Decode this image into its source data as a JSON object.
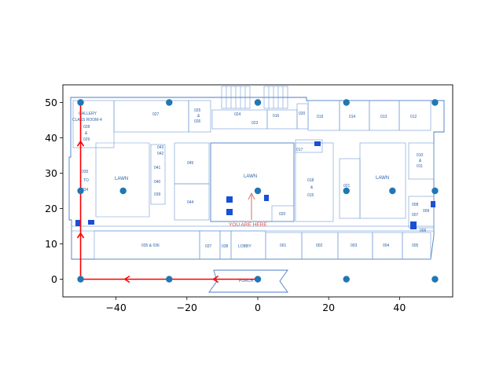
{
  "chart_data": {
    "type": "scatter",
    "x_ticks": [
      -40,
      -20,
      0,
      20,
      40
    ],
    "y_ticks": [
      0,
      10,
      20,
      30,
      40,
      50
    ],
    "xlim": [
      -55,
      55
    ],
    "ylim": [
      -5,
      55
    ],
    "grid": false,
    "points": [
      {
        "x": -50,
        "y": 50
      },
      {
        "x": -25,
        "y": 50
      },
      {
        "x": 0,
        "y": 50
      },
      {
        "x": 25,
        "y": 50
      },
      {
        "x": 50,
        "y": 50
      },
      {
        "x": -50,
        "y": 25
      },
      {
        "x": -38,
        "y": 25
      },
      {
        "x": 0,
        "y": 25
      },
      {
        "x": 25,
        "y": 25
      },
      {
        "x": 38,
        "y": 25
      },
      {
        "x": 50,
        "y": 25
      },
      {
        "x": -50,
        "y": 0
      },
      {
        "x": -25,
        "y": 0
      },
      {
        "x": 0,
        "y": 0
      },
      {
        "x": 25,
        "y": 0
      },
      {
        "x": 50,
        "y": 0
      }
    ],
    "point_color": "#1f77b4",
    "path_color": "#ff0000",
    "path": [
      {
        "x": 0,
        "y": 0
      },
      {
        "x": -12.5,
        "y": 0
      },
      {
        "x": -25,
        "y": 0
      },
      {
        "x": -37.5,
        "y": 0
      },
      {
        "x": -50,
        "y": 0
      },
      {
        "x": -50,
        "y": 13
      },
      {
        "x": -50,
        "y": 26
      },
      {
        "x": -50,
        "y": 39
      },
      {
        "x": -50,
        "y": 50
      }
    ],
    "arrowheads": [
      {
        "x": -12.5,
        "y": 0,
        "dir": "left"
      },
      {
        "x": -37.5,
        "y": 0,
        "dir": "left"
      },
      {
        "x": -50,
        "y": 13,
        "dir": "up"
      },
      {
        "x": -50,
        "y": 39,
        "dir": "up"
      }
    ]
  },
  "floorplan": {
    "you_are_here": "YOU ARE HERE",
    "labels": {
      "gallery": "GALLERY",
      "class_room": "CLASS ROOM-4",
      "r028": "028",
      "amp": "&",
      "r029": "029",
      "r030": "030",
      "to": "TO",
      "r034": "034",
      "lawn_left": "LAWN",
      "r043": "043",
      "r042": "042",
      "r041": "041",
      "r040": "040",
      "r039": "039",
      "r045": "045",
      "r044": "044",
      "r027": "027",
      "r025": "025",
      "r026": "026",
      "r024": "024",
      "r023": "023",
      "r016": "016",
      "r020": "020",
      "r019": "019",
      "r017": "017",
      "lawn_center": "LAWN",
      "r018": "018",
      "r015": "015",
      "r021": "021",
      "r014": "014",
      "r013": "013",
      "r012": "012",
      "lawn_right": "LAWN",
      "r010": "010",
      "r011": "011",
      "r008": "008",
      "r009": "009",
      "r007": "007",
      "r006": "006",
      "r035_036": "035 & 036",
      "r037": "037",
      "r038": "038",
      "lobby": "LOBBY",
      "r001": "001",
      "r002": "002",
      "r003": "003",
      "r004": "004",
      "r005": "005",
      "porch": "PORCH",
      "r020b": "020"
    }
  }
}
